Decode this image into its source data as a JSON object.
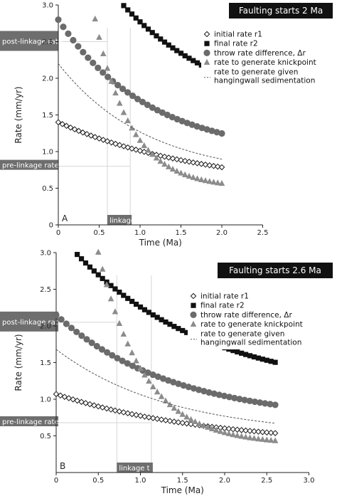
{
  "chart_data": [
    {
      "type": "scatter",
      "panel_label": "A",
      "title": "Faulting starts 2 Ma",
      "xlabel": "Time (Ma)",
      "ylabel": "Rate (mm/yr)",
      "xlim": [
        0,
        2.5
      ],
      "ylim": [
        0,
        3.0
      ],
      "xticks": [
        0,
        0.5,
        1.0,
        1.5,
        2.0,
        2.5
      ],
      "xtick_labels": [
        "0",
        "0.5",
        "1.0",
        "1.5",
        "2.0",
        "2.5"
      ],
      "yticks": [
        0,
        0.5,
        1.0,
        1.5,
        2.0,
        2.5,
        3.0
      ],
      "ytick_labels": [
        "0",
        "0.5",
        "1.0",
        "1.5",
        "2.0",
        "2.5",
        "3.0"
      ],
      "grid": false,
      "legend_position": "top-right",
      "pre_linkage_label": "pre-linkage rate",
      "post_linkage_label": "post-linkage rate",
      "linkage_label": "linkage t",
      "pre_linkage_rate": 0.8,
      "post_linkage_rate": 2.5,
      "linkage_t_range": [
        0.6,
        0.88
      ],
      "series": [
        {
          "name": "initial rate r1",
          "marker": "open-diamond",
          "fn": {
            "kind": "exp",
            "y0": 1.4,
            "k": 0.55,
            "ys": 0.48
          },
          "x_start": 0.0,
          "x_end": 2.0,
          "n": 41
        },
        {
          "name": "final rate r2",
          "marker": "filled-square",
          "fn": {
            "kind": "exp",
            "y0": 4.3,
            "k": 0.75,
            "ys": 1.4
          },
          "x_start": 0.4,
          "x_end": 2.0,
          "n": 33
        },
        {
          "name": "throw rate difference, Δr",
          "marker": "filled-circle",
          "fn": {
            "kind": "exp",
            "y0": 2.8,
            "k": 0.9,
            "ys": 0.94
          },
          "x_start": 0.0,
          "x_end": 2.0,
          "n": 34
        },
        {
          "name": "rate to generate knickpoint",
          "marker": "filled-triangle",
          "fn": {
            "kind": "exp",
            "y0": 7.0,
            "k": 2.3,
            "ys": 0.5
          },
          "x_start": 0.35,
          "x_end": 2.0,
          "n": 34
        },
        {
          "name": "rate to generate given hangingwall sedimentation",
          "marker": "dashed-line",
          "fn": {
            "kind": "exp",
            "y0": 2.2,
            "k": 0.92,
            "ys": 0.65
          },
          "x_start": 0.0,
          "x_end": 2.0,
          "n": 60
        }
      ]
    },
    {
      "type": "scatter",
      "panel_label": "B",
      "title": "Faulting starts 2.6 Ma",
      "xlabel": "Time (Ma)",
      "ylabel": "Rate (mm/yr)",
      "xlim": [
        0,
        3.0
      ],
      "ylim": [
        0,
        3.0
      ],
      "xticks": [
        0,
        0.5,
        1.0,
        1.5,
        2.0,
        2.5,
        3.0
      ],
      "xtick_labels": [
        "0",
        "0.5",
        "1.0",
        "1.5",
        "2.0",
        "2.5",
        "3.0"
      ],
      "yticks": [
        0.5,
        1.0,
        1.5,
        2.0,
        2.5,
        3.0
      ],
      "ytick_labels": [
        "0.5",
        "1.0",
        "1.5",
        "2.0",
        "2.5",
        "3.0"
      ],
      "grid": false,
      "legend_position": "top-right",
      "pre_linkage_label": "pre-linkage rate",
      "post_linkage_label": "post-linkage rate",
      "linkage_label": "linkage t",
      "pre_linkage_rate": 0.68,
      "post_linkage_rate": 2.05,
      "linkage_t_range": [
        0.72,
        1.13
      ],
      "series": [
        {
          "name": "initial rate r1",
          "marker": "open-diamond",
          "fn": {
            "kind": "exp",
            "y0": 1.07,
            "k": 0.55,
            "ys": 0.37
          },
          "x_start": 0.0,
          "x_end": 2.6,
          "n": 53
        },
        {
          "name": "final rate r2",
          "marker": "filled-square",
          "fn": {
            "kind": "exp",
            "y0": 3.3,
            "k": 0.63,
            "ys": 1.07
          },
          "x_start": 0.1,
          "x_end": 2.6,
          "n": 51
        },
        {
          "name": "throw rate difference, Δr",
          "marker": "filled-circle",
          "fn": {
            "kind": "exp",
            "y0": 2.15,
            "k": 0.72,
            "ys": 0.7
          },
          "x_start": 0.0,
          "x_end": 2.6,
          "n": 44
        },
        {
          "name": "rate to generate knickpoint",
          "marker": "filled-triangle",
          "fn": {
            "kind": "exp",
            "y0": 7.0,
            "k": 1.85,
            "ys": 0.38
          },
          "x_start": 0.35,
          "x_end": 2.6,
          "n": 46
        },
        {
          "name": "rate to generate given hangingwall sedimentation",
          "marker": "dashed-line",
          "fn": {
            "kind": "exp",
            "y0": 1.68,
            "k": 0.74,
            "ys": 0.5
          },
          "x_start": 0.0,
          "x_end": 2.6,
          "n": 60
        }
      ]
    }
  ]
}
